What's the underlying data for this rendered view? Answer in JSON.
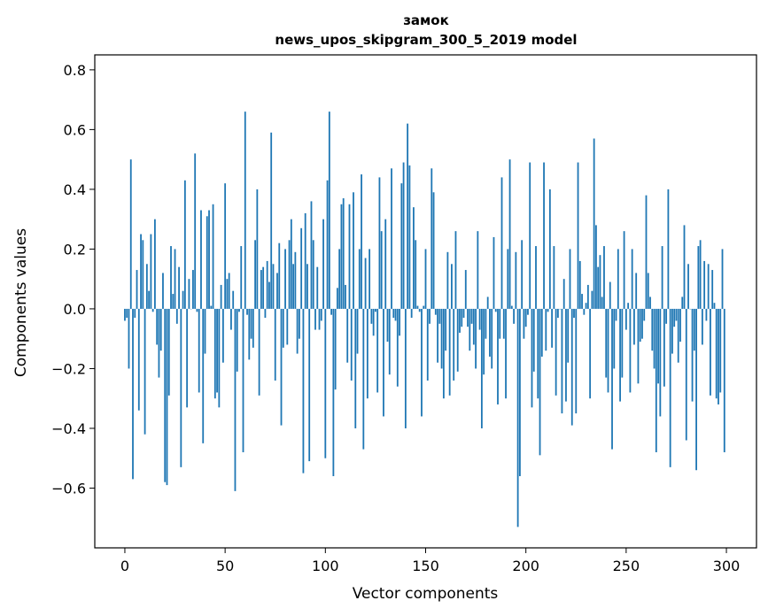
{
  "chart_data": {
    "type": "bar",
    "title": "замок",
    "subtitle": "news_upos_skipgram_300_5_2019 model",
    "xlabel": "Vector components",
    "ylabel": "Components values",
    "xlim": [
      -15,
      315
    ],
    "ylim": [
      -0.8,
      0.85
    ],
    "xticks": [
      0,
      50,
      100,
      150,
      200,
      250,
      300
    ],
    "yticks": [
      -0.6,
      -0.4,
      -0.2,
      0.0,
      0.2,
      0.4,
      0.6,
      0.8
    ],
    "xtick_labels": [
      "0",
      "50",
      "100",
      "150",
      "200",
      "250",
      "300"
    ],
    "ytick_labels": [
      "−0.6",
      "−0.4",
      "−0.2",
      "0.0",
      "0.2",
      "0.4",
      "0.6",
      "0.8"
    ],
    "grid": false,
    "bar_color": "#1f77b4",
    "values": [
      -0.04,
      -0.03,
      -0.2,
      0.5,
      -0.57,
      -0.03,
      0.13,
      -0.34,
      0.25,
      0.23,
      -0.42,
      0.15,
      0.06,
      0.25,
      -0.01,
      0.3,
      -0.12,
      -0.23,
      -0.14,
      0.12,
      -0.58,
      -0.59,
      -0.29,
      0.21,
      0.05,
      0.2,
      -0.05,
      0.14,
      -0.53,
      0.06,
      0.43,
      -0.33,
      0.1,
      0.0,
      0.13,
      0.52,
      -0.01,
      -0.28,
      0.33,
      -0.45,
      -0.15,
      0.31,
      0.33,
      0.01,
      0.35,
      -0.3,
      -0.28,
      -0.33,
      0.08,
      -0.18,
      0.42,
      0.1,
      0.12,
      -0.07,
      0.06,
      -0.61,
      -0.21,
      -0.01,
      0.21,
      -0.48,
      0.66,
      -0.02,
      -0.17,
      -0.1,
      -0.13,
      0.23,
      0.4,
      -0.29,
      0.13,
      0.14,
      -0.03,
      0.16,
      0.09,
      0.59,
      0.15,
      -0.24,
      0.12,
      0.22,
      -0.39,
      -0.13,
      0.2,
      -0.12,
      0.23,
      0.3,
      0.15,
      0.19,
      -0.15,
      -0.1,
      0.27,
      -0.55,
      0.32,
      0.15,
      -0.51,
      0.36,
      0.23,
      -0.07,
      0.14,
      -0.07,
      -0.04,
      0.3,
      -0.5,
      0.43,
      0.66,
      -0.02,
      -0.56,
      -0.27,
      0.07,
      0.2,
      0.35,
      0.37,
      0.08,
      -0.18,
      0.35,
      -0.24,
      0.39,
      -0.4,
      -0.15,
      0.2,
      0.45,
      -0.47,
      0.17,
      -0.3,
      0.2,
      -0.05,
      -0.09,
      -0.01,
      -0.28,
      0.44,
      0.26,
      -0.36,
      0.3,
      -0.11,
      -0.22,
      0.47,
      -0.03,
      -0.04,
      -0.26,
      -0.09,
      0.42,
      0.49,
      -0.4,
      0.62,
      0.48,
      -0.03,
      0.34,
      0.23,
      0.01,
      -0.01,
      -0.36,
      0.01,
      0.2,
      -0.24,
      -0.05,
      0.47,
      0.39,
      -0.02,
      -0.18,
      -0.05,
      -0.2,
      -0.3,
      -0.14,
      0.19,
      -0.29,
      0.15,
      -0.24,
      0.26,
      -0.21,
      -0.08,
      -0.06,
      -0.03,
      0.13,
      -0.06,
      -0.14,
      -0.05,
      -0.12,
      -0.2,
      0.26,
      -0.07,
      -0.4,
      -0.22,
      -0.1,
      0.04,
      -0.16,
      -0.2,
      0.24,
      -0.01,
      -0.32,
      -0.1,
      0.44,
      -0.1,
      -0.3,
      0.2,
      0.5,
      0.01,
      -0.05,
      0.19,
      -0.73,
      -0.56,
      0.23,
      -0.1,
      -0.06,
      -0.02,
      0.49,
      -0.33,
      -0.21,
      0.21,
      -0.3,
      -0.49,
      -0.16,
      0.49,
      -0.14,
      -0.01,
      0.4,
      -0.13,
      0.21,
      -0.29,
      -0.03,
      0.0,
      -0.35,
      0.1,
      -0.31,
      -0.18,
      0.2,
      -0.39,
      -0.03,
      -0.35,
      0.49,
      0.16,
      0.05,
      -0.02,
      0.02,
      0.08,
      -0.3,
      0.06,
      0.57,
      0.28,
      0.14,
      0.18,
      0.04,
      0.21,
      -0.23,
      -0.28,
      0.09,
      -0.47,
      -0.2,
      -0.04,
      0.2,
      -0.31,
      -0.23,
      0.26,
      -0.07,
      0.02,
      -0.28,
      0.2,
      -0.12,
      0.12,
      -0.25,
      -0.11,
      -0.1,
      -0.04,
      0.38,
      0.12,
      0.04,
      -0.14,
      -0.2,
      -0.48,
      -0.25,
      -0.36,
      0.21,
      -0.26,
      -0.05,
      0.4,
      -0.53,
      -0.15,
      -0.06,
      -0.04,
      -0.18,
      -0.11,
      0.04,
      0.28,
      -0.44,
      0.15,
      0.0,
      -0.31,
      -0.14,
      -0.54,
      0.21,
      0.23,
      -0.12,
      0.16,
      -0.04,
      0.15,
      -0.29,
      0.13,
      0.02,
      -0.3,
      -0.32,
      -0.28,
      0.2,
      -0.48
    ]
  }
}
